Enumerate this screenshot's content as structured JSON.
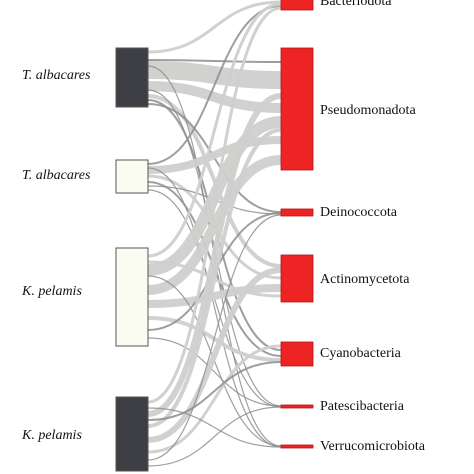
{
  "diagram": {
    "hosts": [
      {
        "label": "T. albacares",
        "fill": "#3d3f44"
      },
      {
        "label": "T. albacares",
        "fill": "#fafcf2"
      },
      {
        "label": "K. pelamis",
        "fill": "#fafcf2"
      },
      {
        "label": "K. pelamis",
        "fill": "#3d3f44"
      }
    ],
    "phyla": [
      {
        "label": "Bacteriodota"
      },
      {
        "label": "Pseudomonadota"
      },
      {
        "label": "Deinococcota"
      },
      {
        "label": "Actinomycetota"
      },
      {
        "label": "Cyanobacteria"
      },
      {
        "label": "Patescibacteria"
      },
      {
        "label": "Verrucomicrobiota"
      }
    ],
    "colors": {
      "phylum_fill": "#ee2424",
      "host_stroke": "#555555",
      "link_band": "#cfcfcd",
      "link_line": "#8e8e8e"
    }
  }
}
